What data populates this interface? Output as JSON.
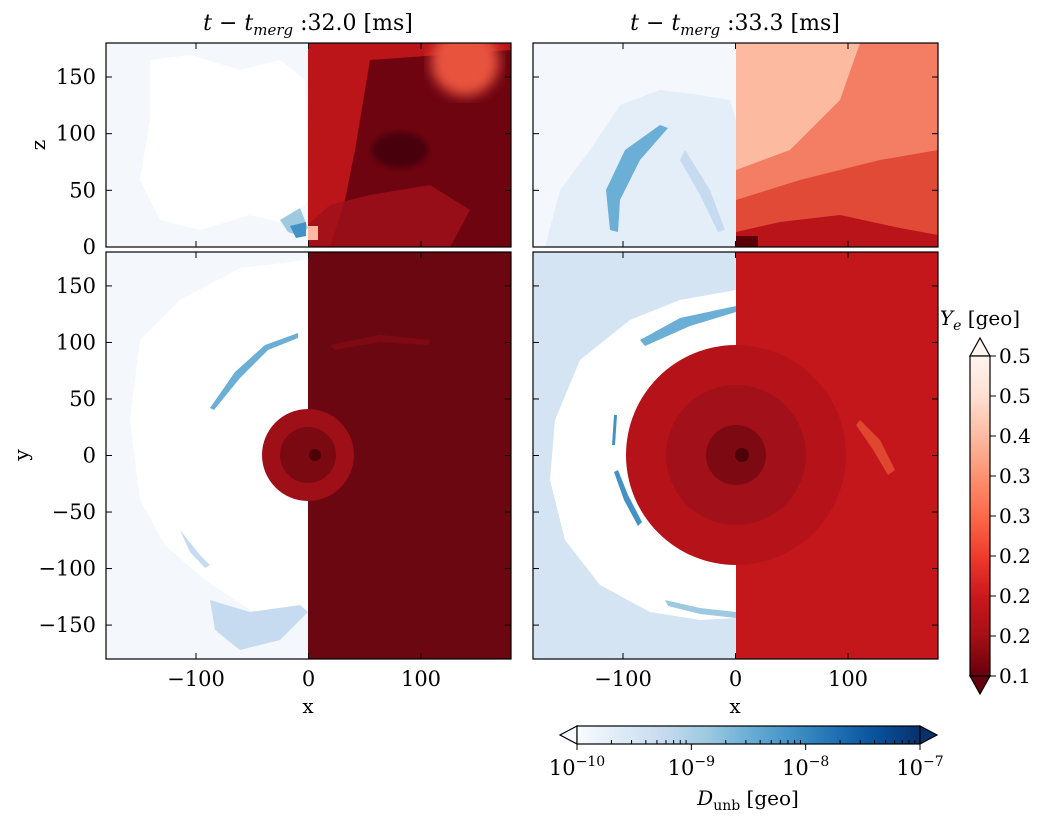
{
  "chart_data": {
    "type": "heatmap",
    "panels": [
      {
        "id": "xz-left",
        "plane": "x-z",
        "time_prefix": "t − t",
        "time_subscript": "merg",
        "time_value": " :32.0 [ms]",
        "xlim": [
          -180,
          180
        ],
        "ylim": [
          0,
          180
        ],
        "ylabel": "z",
        "yticks": [
          "0",
          "50",
          "100",
          "150"
        ],
        "ytick_values": [
          0,
          50,
          100,
          150
        ]
      },
      {
        "id": "xz-right",
        "plane": "x-z",
        "time_prefix": "t − t",
        "time_subscript": "merg",
        "time_value": " :33.3 [ms]",
        "xlim": [
          -180,
          180
        ],
        "ylim": [
          0,
          180
        ]
      },
      {
        "id": "xy-left",
        "plane": "x-y",
        "xlim": [
          -180,
          180
        ],
        "ylim": [
          -180,
          180
        ],
        "xlabel": "x",
        "ylabel": "y",
        "xticks": [
          "−100",
          "0",
          "100"
        ],
        "xtick_values": [
          -100,
          0,
          100
        ],
        "yticks": [
          "−150",
          "−100",
          "−50",
          "0",
          "50",
          "100",
          "150"
        ],
        "ytick_values": [
          -150,
          -100,
          -50,
          0,
          50,
          100,
          150
        ]
      },
      {
        "id": "xy-right",
        "plane": "x-y",
        "xlim": [
          -180,
          180
        ],
        "ylim": [
          -180,
          180
        ],
        "xlabel": "x",
        "xticks": [
          "−100",
          "0",
          "100"
        ],
        "xtick_values": [
          -100,
          0,
          100
        ]
      }
    ],
    "left_half_field": "D_unb",
    "right_half_field": "Y_e",
    "colorbars": {
      "ye": {
        "label_symbol": "Y",
        "label_sub": "e",
        "label_unit": " [geo]",
        "range": [
          0.1,
          0.5
        ],
        "tick_labels": [
          "0.1",
          "0.2",
          "0.2",
          "0.2",
          "0.3",
          "0.3",
          "0.4",
          "0.5",
          "0.5"
        ],
        "extend": "both",
        "colormap": "Reds_r",
        "colors": [
          "#67000d",
          "#a50f15",
          "#cb181d",
          "#ef3b2c",
          "#fb6a4a",
          "#fc9272",
          "#fcbba1",
          "#fee0d2",
          "#fff5f0"
        ]
      },
      "dunb": {
        "label_symbol": "D",
        "label_sub": "unb",
        "label_unit": " [geo]",
        "scale": "log",
        "range": [
          1e-10,
          1e-07
        ],
        "tick_base": "10",
        "tick_exponents": [
          "−10",
          "−9",
          "−8",
          "−7"
        ],
        "extend": "both",
        "colormap": "Blues",
        "colors": [
          "#f7fbff",
          "#deebf7",
          "#c6dbef",
          "#9ecae1",
          "#6baed6",
          "#4292c6",
          "#2171b5",
          "#08519c",
          "#08306b"
        ]
      }
    }
  }
}
